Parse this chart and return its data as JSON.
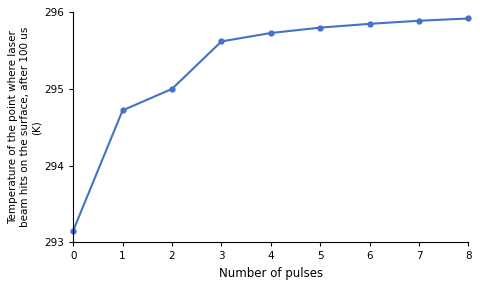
{
  "x": [
    0,
    1,
    2,
    3,
    4,
    5,
    6,
    7,
    8
  ],
  "y": [
    293.15,
    294.72,
    295.0,
    295.62,
    295.73,
    295.8,
    295.85,
    295.89,
    295.92
  ],
  "xlabel": "Number of pulses",
  "ylabel_line1": "Temperature of the point where laser",
  "ylabel_line2": "beam hits on the surface, after 100 us",
  "ylabel_line3": "(K)",
  "xlim": [
    0,
    8
  ],
  "ylim": [
    293,
    296
  ],
  "yticks": [
    293,
    294,
    295,
    296
  ],
  "xticks": [
    0,
    1,
    2,
    3,
    4,
    5,
    6,
    7,
    8
  ],
  "line_color": "#4472C4",
  "marker": "o",
  "marker_size": 3.5,
  "line_width": 1.5,
  "background_color": "#ffffff",
  "font_size": 7.5,
  "label_font_size": 8.5
}
